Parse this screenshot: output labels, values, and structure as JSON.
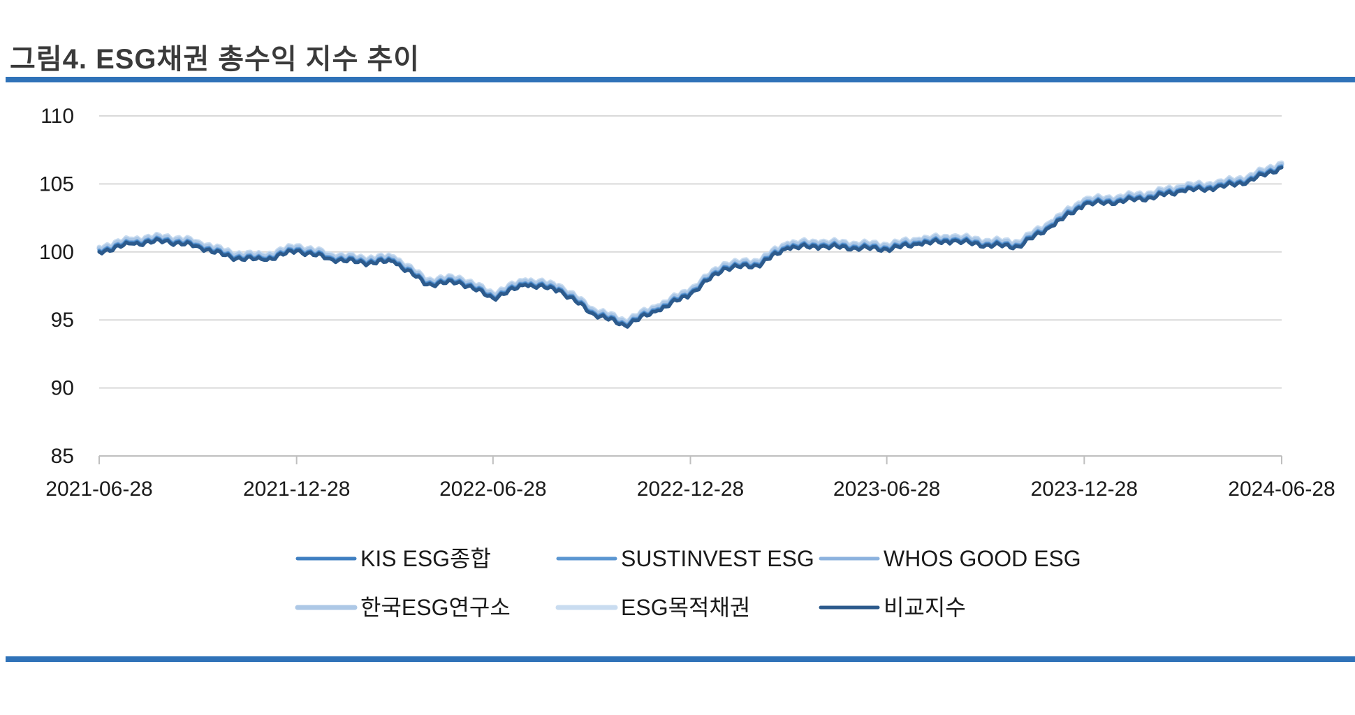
{
  "figure": {
    "title": "그림4. ESG채권 총수익 지수 추이"
  },
  "chart_data": {
    "type": "line",
    "title": "그림4. ESG채권 총수익 지수 추이",
    "xlabel": "",
    "ylabel": "",
    "ylim": [
      85,
      110
    ],
    "yticks": [
      "85",
      "90",
      "95",
      "100",
      "105",
      "110"
    ],
    "xlim": [
      "2021-06-28",
      "2024-06-28"
    ],
    "xticks": [
      "2021-06-28",
      "2021-12-28",
      "2022-06-28",
      "2022-12-28",
      "2023-06-28",
      "2023-12-28",
      "2024-06-28"
    ],
    "grid": "horizontal",
    "legend_position": "bottom",
    "x": [
      "2021-06-28",
      "2021-07-28",
      "2021-08-28",
      "2021-09-28",
      "2021-10-28",
      "2021-11-28",
      "2021-12-28",
      "2022-01-28",
      "2022-02-28",
      "2022-03-28",
      "2022-04-28",
      "2022-05-28",
      "2022-06-28",
      "2022-07-28",
      "2022-08-28",
      "2022-09-28",
      "2022-10-28",
      "2022-11-28",
      "2022-12-28",
      "2023-01-28",
      "2023-02-28",
      "2023-03-28",
      "2023-04-28",
      "2023-05-28",
      "2023-06-28",
      "2023-07-28",
      "2023-08-28",
      "2023-09-28",
      "2023-10-28",
      "2023-11-28",
      "2023-12-28",
      "2024-01-28",
      "2024-02-28",
      "2024-03-28",
      "2024-04-28",
      "2024-05-28",
      "2024-06-28"
    ],
    "series": [
      {
        "name": "KIS ESG종합",
        "color": "#3f7fc1",
        "offset": 0.05,
        "values": [
          100.0,
          100.6,
          100.8,
          100.4,
          99.6,
          99.4,
          100.1,
          99.5,
          99.2,
          99.3,
          97.6,
          97.8,
          96.6,
          97.6,
          97.2,
          95.5,
          94.6,
          95.7,
          96.9,
          98.8,
          99.0,
          100.3,
          100.4,
          100.3,
          100.2,
          100.6,
          100.8,
          100.5,
          100.4,
          101.9,
          103.5,
          103.7,
          104.0,
          104.5,
          104.7,
          105.2,
          106.2
        ]
      },
      {
        "name": "SUSTINVEST ESG",
        "color": "#5b96d1",
        "offset": 0.1,
        "values": [
          100.0,
          100.6,
          100.8,
          100.4,
          99.6,
          99.4,
          100.1,
          99.5,
          99.2,
          99.3,
          97.6,
          97.8,
          96.6,
          97.6,
          97.2,
          95.5,
          94.6,
          95.7,
          96.9,
          98.8,
          99.0,
          100.3,
          100.4,
          100.3,
          100.2,
          100.6,
          100.8,
          100.5,
          100.4,
          101.9,
          103.5,
          103.7,
          104.0,
          104.5,
          104.7,
          105.2,
          106.2
        ]
      },
      {
        "name": "WHOS GOOD ESG",
        "color": "#8cb2de",
        "offset": 0.15,
        "values": [
          100.0,
          100.6,
          100.8,
          100.4,
          99.6,
          99.4,
          100.1,
          99.5,
          99.2,
          99.3,
          97.6,
          97.8,
          96.6,
          97.6,
          97.2,
          95.5,
          94.6,
          95.7,
          96.9,
          98.8,
          99.0,
          100.3,
          100.4,
          100.3,
          100.2,
          100.6,
          100.8,
          100.5,
          100.4,
          101.9,
          103.5,
          103.7,
          104.0,
          104.5,
          104.7,
          105.2,
          106.2
        ]
      },
      {
        "name": "한국ESG연구소",
        "color": "#adc8e6",
        "offset": 0.25,
        "values": [
          100.0,
          100.6,
          100.8,
          100.4,
          99.6,
          99.4,
          100.1,
          99.5,
          99.2,
          99.3,
          97.6,
          97.8,
          96.6,
          97.6,
          97.2,
          95.5,
          94.6,
          95.7,
          96.9,
          98.8,
          99.0,
          100.3,
          100.4,
          100.3,
          100.2,
          100.6,
          100.8,
          100.5,
          100.4,
          101.9,
          103.5,
          103.7,
          104.0,
          104.5,
          104.7,
          105.2,
          106.2
        ]
      },
      {
        "name": "ESG목적채권",
        "color": "#c9dcf0",
        "offset": 0.35,
        "values": [
          100.0,
          100.6,
          100.8,
          100.4,
          99.6,
          99.4,
          100.1,
          99.5,
          99.2,
          99.3,
          97.6,
          97.8,
          96.6,
          97.6,
          97.2,
          95.5,
          94.6,
          95.7,
          96.9,
          98.8,
          99.0,
          100.3,
          100.4,
          100.3,
          100.2,
          100.6,
          100.8,
          100.5,
          100.4,
          101.9,
          103.5,
          103.7,
          104.0,
          104.5,
          104.7,
          105.2,
          106.2
        ]
      },
      {
        "name": "비교지수",
        "color": "#2c5a8c",
        "offset": 0.0,
        "values": [
          100.0,
          100.6,
          100.8,
          100.4,
          99.6,
          99.4,
          100.1,
          99.5,
          99.2,
          99.3,
          97.6,
          97.8,
          96.6,
          97.6,
          97.2,
          95.5,
          94.6,
          95.7,
          96.9,
          98.8,
          99.0,
          100.3,
          100.4,
          100.3,
          100.2,
          100.6,
          100.8,
          100.5,
          100.4,
          101.9,
          103.5,
          103.7,
          104.0,
          104.5,
          104.7,
          105.2,
          106.2
        ]
      }
    ]
  }
}
